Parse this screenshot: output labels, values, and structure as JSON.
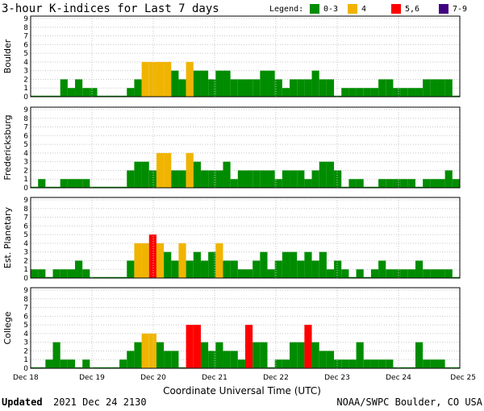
{
  "chart_data": {
    "type": "bar",
    "title": "3-hour K-indices for Last 7 days",
    "legend": {
      "title": "Legend:",
      "placement": "top-right",
      "entries": [
        {
          "label": "0-3",
          "color": "#008c00"
        },
        {
          "label": "4",
          "color": "#f0b400"
        },
        {
          "label": "5,6",
          "color": "#ff0000"
        },
        {
          "label": "7-9",
          "color": "#400080"
        }
      ]
    },
    "xlabel": "Coordinate Universal Time (UTC)",
    "x_ticks": [
      "Dec 18",
      "Dec 19",
      "Dec 20",
      "Dec 21",
      "Dec 22",
      "Dec 23",
      "Dec 24",
      "Dec 25"
    ],
    "ylim": [
      0,
      9
    ],
    "y_ticks": [
      0,
      1,
      2,
      3,
      4,
      5,
      6,
      7,
      8,
      9
    ],
    "grid": true,
    "panels": [
      {
        "name": "Boulder",
        "values": [
          0,
          0,
          0,
          0,
          2,
          1,
          2,
          1,
          1,
          0,
          0,
          0,
          0,
          1,
          2,
          4,
          4,
          4,
          4,
          3,
          2,
          4,
          3,
          3,
          2,
          3,
          3,
          2,
          2,
          2,
          2,
          3,
          3,
          2,
          1,
          2,
          2,
          2,
          3,
          2,
          2,
          0,
          1,
          1,
          1,
          1,
          1,
          2,
          2,
          1,
          1,
          1,
          1,
          2,
          2,
          2,
          2,
          0
        ]
      },
      {
        "name": "Fredericksburg",
        "values": [
          0,
          1,
          0,
          0,
          1,
          1,
          1,
          1,
          0,
          0,
          0,
          0,
          0,
          2,
          3,
          3,
          2,
          4,
          4,
          2,
          2,
          4,
          3,
          2,
          2,
          2,
          3,
          1,
          2,
          2,
          2,
          2,
          2,
          1,
          2,
          2,
          2,
          1,
          2,
          3,
          3,
          2,
          0,
          1,
          1,
          0,
          0,
          1,
          1,
          1,
          1,
          1,
          0,
          1,
          1,
          1,
          2,
          1
        ]
      },
      {
        "name": "Est. Planetary",
        "values": [
          1,
          1,
          0,
          1,
          1,
          1,
          2,
          1,
          0,
          0,
          0,
          0,
          0,
          2,
          4,
          4,
          5,
          4,
          3,
          2,
          4,
          2,
          3,
          2,
          3,
          4,
          2,
          2,
          1,
          1,
          2,
          3,
          1,
          2,
          3,
          3,
          2,
          3,
          2,
          3,
          1,
          2,
          1,
          0,
          1,
          0,
          1,
          2,
          1,
          1,
          1,
          1,
          2,
          1,
          1,
          1,
          1,
          0
        ]
      },
      {
        "name": "College",
        "values": [
          0,
          0,
          1,
          3,
          1,
          1,
          0,
          1,
          0,
          0,
          0,
          0,
          1,
          2,
          3,
          4,
          4,
          3,
          2,
          2,
          0,
          5,
          5,
          3,
          2,
          3,
          2,
          2,
          1,
          5,
          3,
          3,
          0,
          1,
          1,
          3,
          3,
          5,
          3,
          2,
          2,
          1,
          1,
          1,
          3,
          1,
          1,
          1,
          1,
          0,
          0,
          0,
          3,
          1,
          1,
          1,
          0,
          0
        ]
      }
    ]
  },
  "footer": {
    "updated_word": "Updated",
    "updated_time": "2021 Dec 24 2130",
    "credit": "NOAA/SWPC Boulder, CO USA"
  }
}
